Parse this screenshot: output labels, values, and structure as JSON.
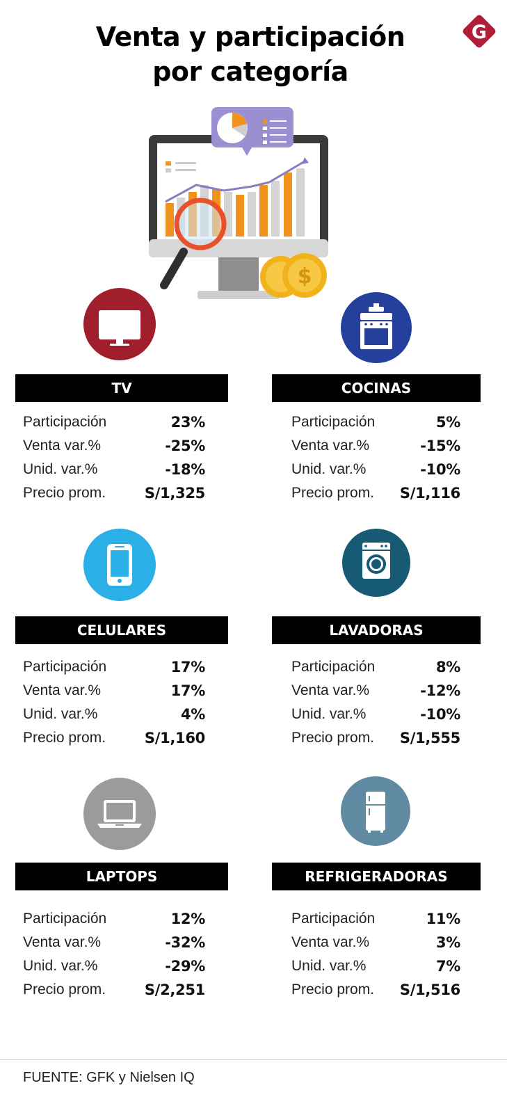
{
  "header": {
    "title_line1": "Venta y participación",
    "title_line2": "por categoría",
    "logo_letter": "G"
  },
  "colors": {
    "brand_red": "#b11e3a",
    "tv": "#a11f2c",
    "cocinas": "#24409c",
    "celulares": "#2ab0e6",
    "lavadoras": "#165a73",
    "laptops": "#9b9b9b",
    "refrigeradoras": "#5f8aa2",
    "header_bg": "#000000"
  },
  "labels": {
    "participacion": "Participación",
    "venta": "Venta var.%",
    "unid": "Unid. var.%",
    "precio": "Precio prom."
  },
  "categories": [
    {
      "name": "TV",
      "icon": "tv-icon",
      "participacion": "23%",
      "venta": "-25%",
      "unid": "-18%",
      "precio": "S/1,325"
    },
    {
      "name": "COCINAS",
      "icon": "stove-icon",
      "participacion": "5%",
      "venta": "-15%",
      "unid": "-10%",
      "precio": "S/1,116"
    },
    {
      "name": "CELULARES",
      "icon": "smartphone-icon",
      "participacion": "17%",
      "venta": "17%",
      "unid": "4%",
      "precio": "S/1,160"
    },
    {
      "name": "LAVADORAS",
      "icon": "washing-machine-icon",
      "participacion": "8%",
      "venta": "-12%",
      "unid": "-10%",
      "precio": "S/1,555"
    },
    {
      "name": "LAPTOPS",
      "icon": "laptop-icon",
      "participacion": "12%",
      "venta": "-32%",
      "unid": "-29%",
      "precio": "S/2,251"
    },
    {
      "name": "REFRIGERADORAS",
      "icon": "refrigerator-icon",
      "participacion": "11%",
      "venta": "3%",
      "unid": "7%",
      "precio": "S/1,516"
    }
  ],
  "chart_data": {
    "type": "table",
    "title": "Venta y participación por categoría",
    "columns": [
      "Participación",
      "Venta var.%",
      "Unid. var.%",
      "Precio prom."
    ],
    "rows": [
      {
        "category": "TV",
        "participacion": 23,
        "venta_var": -25,
        "unid_var": -18,
        "precio_prom": 1325
      },
      {
        "category": "COCINAS",
        "participacion": 5,
        "venta_var": -15,
        "unid_var": -10,
        "precio_prom": 1116
      },
      {
        "category": "CELULARES",
        "participacion": 17,
        "venta_var": 17,
        "unid_var": 4,
        "precio_prom": 1160
      },
      {
        "category": "LAVADORAS",
        "participacion": 8,
        "venta_var": -12,
        "unid_var": -10,
        "precio_prom": 1555
      },
      {
        "category": "LAPTOPS",
        "participacion": 12,
        "venta_var": -32,
        "unid_var": -29,
        "precio_prom": 2251
      },
      {
        "category": "REFRIGERADORAS",
        "participacion": 11,
        "venta_var": 3,
        "unid_var": 7,
        "precio_prom": 1516
      }
    ]
  },
  "footer": {
    "source": "FUENTE: GFK y Nielsen IQ"
  }
}
